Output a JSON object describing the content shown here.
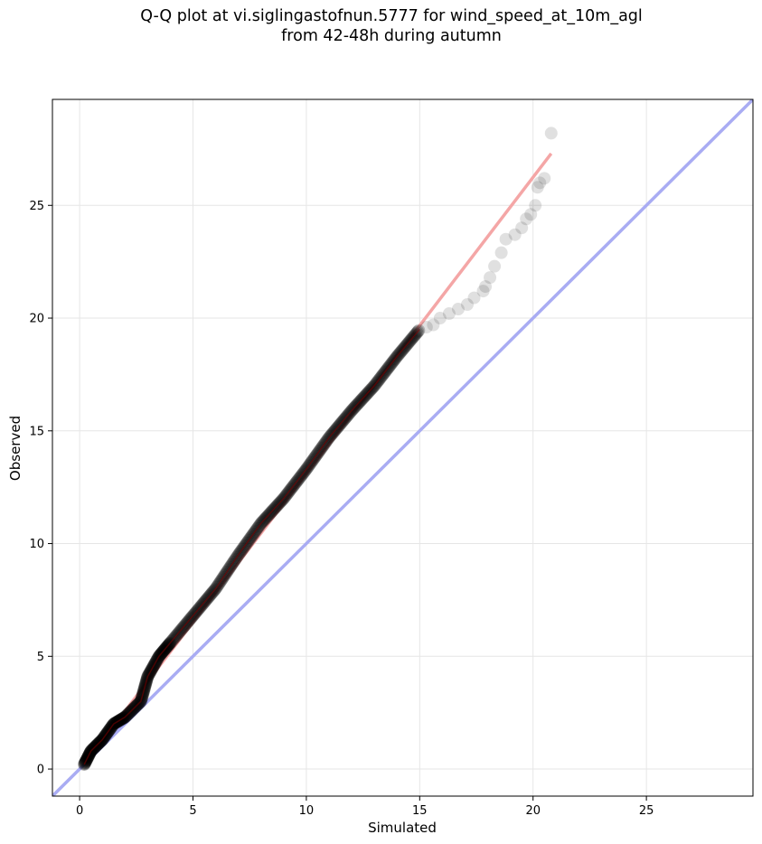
{
  "chart_data": {
    "type": "scatter",
    "title_lines": [
      "Q-Q plot at vi.siglingastofnun.5777 for wind_speed_at_10m_agl",
      "from 42-48h during autumn"
    ],
    "xlabel": "Simulated",
    "ylabel": "Observed",
    "xlim": [
      -1.2,
      29.7
    ],
    "ylim": [
      -1.2,
      29.7
    ],
    "xticks": [
      0,
      5,
      10,
      15,
      20,
      25
    ],
    "yticks": [
      0,
      5,
      10,
      15,
      20,
      25
    ],
    "grid": true,
    "points_color": "#555555",
    "fit_line": {
      "color": "#f4a6a6",
      "x": [
        0.2,
        20.8
      ],
      "y": [
        0.2,
        27.3
      ]
    },
    "identity_line": {
      "color": "#a9acf3"
    },
    "dense_points": {
      "x": [
        0.2,
        0.5,
        1.0,
        1.5,
        2.0,
        2.7,
        3.0,
        3.5,
        4.0,
        5.0,
        6.0,
        7.0,
        8.0,
        9.0,
        10.0,
        11.0,
        12.0,
        13.0,
        14.0,
        15.0
      ],
      "y": [
        0.2,
        0.8,
        1.3,
        2.0,
        2.3,
        3.0,
        4.1,
        5.0,
        5.6,
        6.8,
        8.0,
        9.5,
        10.9,
        12.0,
        13.3,
        14.7,
        15.9,
        17.0,
        18.3,
        19.5
      ]
    },
    "tail_points": {
      "x": [
        15.3,
        15.6,
        15.9,
        16.3,
        16.7,
        17.1,
        17.4,
        17.8,
        17.9,
        18.1,
        18.3,
        18.6,
        18.8,
        19.2,
        19.5,
        19.7,
        19.9,
        20.1,
        20.2,
        20.3,
        20.5,
        20.8
      ],
      "y": [
        19.6,
        19.7,
        20.0,
        20.2,
        20.4,
        20.6,
        20.9,
        21.2,
        21.4,
        21.8,
        22.3,
        22.9,
        23.5,
        23.7,
        24.0,
        24.4,
        24.6,
        25.0,
        25.8,
        26.0,
        26.2,
        28.2
      ]
    }
  }
}
